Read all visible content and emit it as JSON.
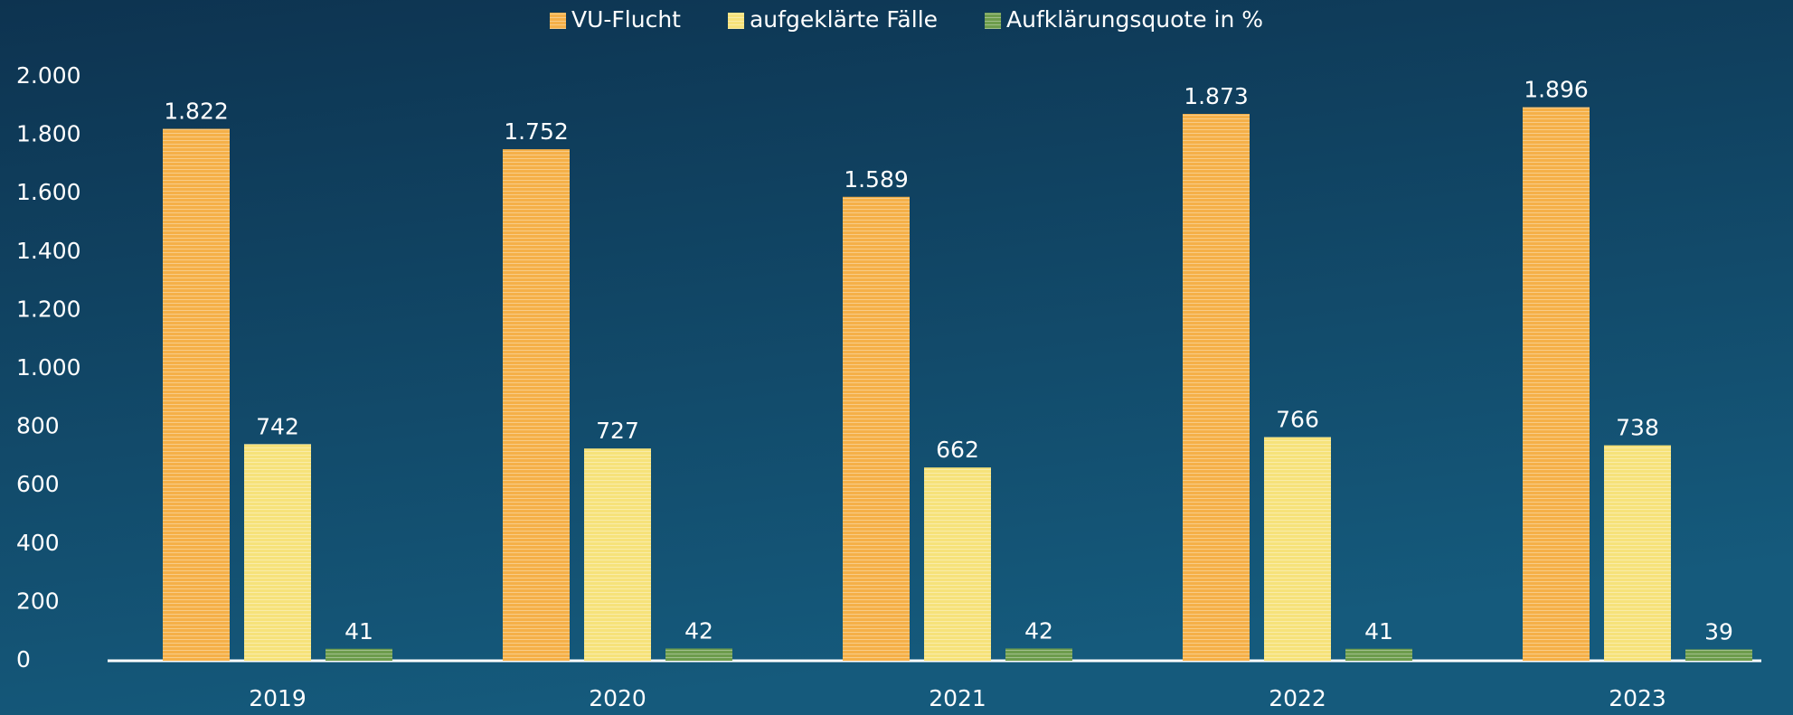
{
  "chart_data": {
    "type": "bar",
    "categories": [
      "2019",
      "2020",
      "2021",
      "2022",
      "2023"
    ],
    "series": [
      {
        "name": "VU-Flucht",
        "color": "#f5b048",
        "values": [
          1822,
          1752,
          1589,
          1873,
          1896
        ],
        "value_labels": [
          "1.822",
          "1.752",
          "1.589",
          "1.873",
          "1.896"
        ]
      },
      {
        "name": "aufgeklärte Fälle",
        "color": "#f6e27a",
        "values": [
          742,
          727,
          662,
          766,
          738
        ]
      },
      {
        "name": "Aufklärungsquote in %",
        "color": "#6d9c4c",
        "values": [
          41,
          42,
          42,
          41,
          39
        ]
      }
    ],
    "ylim": [
      0,
      2000
    ],
    "yticks": [
      0,
      200,
      400,
      600,
      800,
      {
        "value": 1000,
        "label": "1.000"
      },
      {
        "value": 1200,
        "label": "1.200"
      },
      {
        "value": 1400,
        "label": "1.400"
      },
      {
        "value": 1600,
        "label": "1.600"
      },
      {
        "value": 1800,
        "label": "1.800"
      },
      {
        "value": 2000,
        "label": "2.000"
      }
    ],
    "grid": false,
    "legend": "top"
  }
}
